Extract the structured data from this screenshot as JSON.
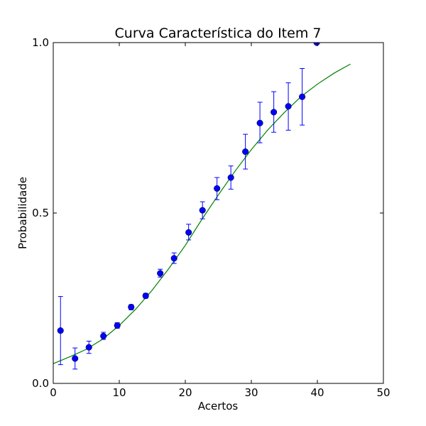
{
  "chart_data": {
    "type": "scatter",
    "title": "Curva Característica do Item 7",
    "xlabel": "Acertos",
    "ylabel": "Probabilidade",
    "xlim": [
      0,
      50
    ],
    "ylim": [
      0.0,
      1.0
    ],
    "xticks": [
      0,
      10,
      20,
      30,
      40,
      50
    ],
    "xtick_labels": [
      "0",
      "10",
      "20",
      "30",
      "40",
      "50"
    ],
    "yticks": [
      0.0,
      0.5,
      1.0
    ],
    "ytick_labels": [
      "0.0",
      "0.5",
      "1.0"
    ],
    "grid": false,
    "series": [
      {
        "kind": "points-with-error-bars",
        "color": "#0000ff",
        "points": [
          {
            "x": 1.1,
            "y": 0.155,
            "low": 0.055,
            "high": 0.255
          },
          {
            "x": 3.3,
            "y": 0.073,
            "low": 0.042,
            "high": 0.104
          },
          {
            "x": 5.4,
            "y": 0.106,
            "low": 0.088,
            "high": 0.124
          },
          {
            "x": 7.6,
            "y": 0.139,
            "low": 0.129,
            "high": 0.15
          },
          {
            "x": 9.7,
            "y": 0.17,
            "low": 0.162,
            "high": 0.178
          },
          {
            "x": 11.8,
            "y": 0.224,
            "low": 0.216,
            "high": 0.231
          },
          {
            "x": 14.0,
            "y": 0.257,
            "low": 0.25,
            "high": 0.264
          },
          {
            "x": 16.2,
            "y": 0.323,
            "low": 0.312,
            "high": 0.335
          },
          {
            "x": 18.3,
            "y": 0.367,
            "low": 0.352,
            "high": 0.383
          },
          {
            "x": 20.5,
            "y": 0.443,
            "low": 0.421,
            "high": 0.467
          },
          {
            "x": 22.6,
            "y": 0.508,
            "low": 0.483,
            "high": 0.533
          },
          {
            "x": 24.8,
            "y": 0.572,
            "low": 0.539,
            "high": 0.604
          },
          {
            "x": 26.9,
            "y": 0.604,
            "low": 0.57,
            "high": 0.638
          },
          {
            "x": 29.1,
            "y": 0.68,
            "low": 0.629,
            "high": 0.731
          },
          {
            "x": 31.3,
            "y": 0.764,
            "low": 0.706,
            "high": 0.825
          },
          {
            "x": 33.4,
            "y": 0.796,
            "low": 0.737,
            "high": 0.856
          },
          {
            "x": 35.6,
            "y": 0.813,
            "low": 0.743,
            "high": 0.882
          },
          {
            "x": 37.7,
            "y": 0.841,
            "low": 0.758,
            "high": 0.924
          },
          {
            "x": 39.9,
            "y": 1.0,
            "low": 1.0,
            "high": 1.0
          }
        ]
      },
      {
        "kind": "fitted-curve",
        "color": "#008000",
        "x": [
          0,
          2.5,
          5,
          7.5,
          10,
          12.5,
          15,
          17.5,
          20,
          22.5,
          25,
          27.5,
          30,
          32.5,
          35,
          37.5,
          40,
          42.5,
          45
        ],
        "y": [
          0.058,
          0.078,
          0.1,
          0.13,
          0.17,
          0.218,
          0.274,
          0.337,
          0.405,
          0.481,
          0.553,
          0.622,
          0.686,
          0.744,
          0.795,
          0.841,
          0.878,
          0.91,
          0.937
        ]
      }
    ]
  }
}
